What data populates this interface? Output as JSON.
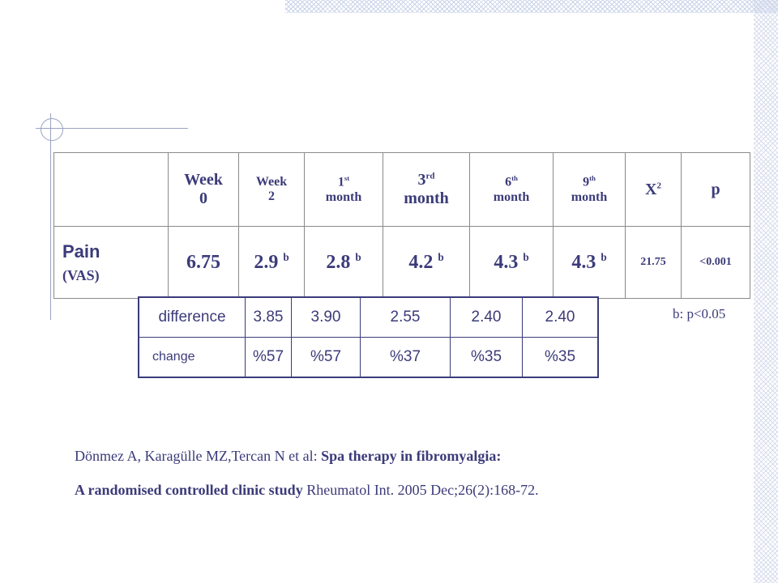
{
  "table": {
    "headers": [
      {
        "main": "Week",
        "line2": "0"
      },
      {
        "main": "Week",
        "line2": "2"
      },
      {
        "main": "1",
        "sup": "st",
        "line2": "month"
      },
      {
        "main": "3",
        "sup": "rd",
        "line2": "month"
      },
      {
        "main": "6",
        "sup": "th",
        "line2": "month"
      },
      {
        "main": "9",
        "sup": "th",
        "line2": "month"
      },
      {
        "main": "X",
        "sup": "2"
      },
      {
        "main": "p"
      }
    ],
    "pain_row": {
      "label": "Pain",
      "sublabel": "(VAS)",
      "values": [
        {
          "v": "6.75",
          "sup": ""
        },
        {
          "v": "2.9",
          "sup": "b"
        },
        {
          "v": "2.8",
          "sup": "b"
        },
        {
          "v": "4.2",
          "sup": "b"
        },
        {
          "v": "4.3",
          "sup": "b"
        },
        {
          "v": "4.3",
          "sup": "b"
        },
        {
          "v": "21.75",
          "sup": ""
        },
        {
          "v": "<0.001",
          "sup": ""
        }
      ]
    }
  },
  "diff_table": {
    "rows": [
      {
        "label": "difference",
        "values": [
          "3.85",
          "3.90",
          "2.55",
          "2.40",
          "2.40"
        ]
      },
      {
        "label": "change",
        "values": [
          "%57",
          "%57",
          "%37",
          "%35",
          "%35"
        ]
      }
    ]
  },
  "note": "b: p<0.05",
  "citation": {
    "line1_authors": "Dönmez A, Karagülle MZ,Tercan N et al: ",
    "line1_title": "Spa therapy in fibromyalgia:",
    "line2_title": "A randomised controlled clinic study",
    "line2_source": " Rheumatol Int. 2005 Dec;26(2):168-72."
  }
}
